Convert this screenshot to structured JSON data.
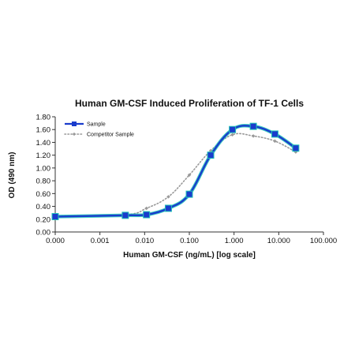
{
  "chart_data": {
    "type": "line",
    "title": "Human GM-CSF Induced Proliferation of TF-1 Cells",
    "xlabel": "Human GM-CSF (ng/mL) [log scale]",
    "ylabel": "OD (490 nm)",
    "x_scale": "log",
    "xlim": [
      0.0001,
      100
    ],
    "ylim": [
      0,
      1.8
    ],
    "x_tick_values": [
      0.0001,
      0.001,
      0.01,
      0.1,
      1,
      10,
      100
    ],
    "x_tick_labels": [
      "0.000",
      "0.001",
      "0.010",
      "0.100",
      "1.000",
      "10.000",
      "100.000"
    ],
    "y_tick_values": [
      0,
      0.2,
      0.4,
      0.6,
      0.8,
      1.0,
      1.2,
      1.4,
      1.6,
      1.8
    ],
    "y_tick_labels": [
      "0.00",
      "0.20",
      "0.40",
      "0.60",
      "0.80",
      "1.00",
      "1.20",
      "1.40",
      "1.60",
      "1.80"
    ],
    "grid": false,
    "legend_position": "top-left",
    "series": [
      {
        "name": "Sample",
        "color": "#1a3ccc",
        "style": "solid",
        "marker": "square",
        "x": [
          0.0001,
          0.0037,
          0.011,
          0.034,
          0.1,
          0.3,
          0.92,
          2.7,
          8.2,
          24
        ],
        "y": [
          0.24,
          0.26,
          0.27,
          0.37,
          0.59,
          1.2,
          1.6,
          1.65,
          1.53,
          1.31
        ]
      },
      {
        "name": "Competitor Sample",
        "color": "#999999",
        "style": "dotted",
        "marker": "diamond",
        "x": [
          0.0001,
          0.0037,
          0.011,
          0.034,
          0.1,
          0.3,
          0.92,
          2.7,
          8.2,
          24
        ],
        "y": [
          0.25,
          0.27,
          0.37,
          0.55,
          0.89,
          1.27,
          1.52,
          1.5,
          1.42,
          1.25
        ]
      }
    ]
  }
}
